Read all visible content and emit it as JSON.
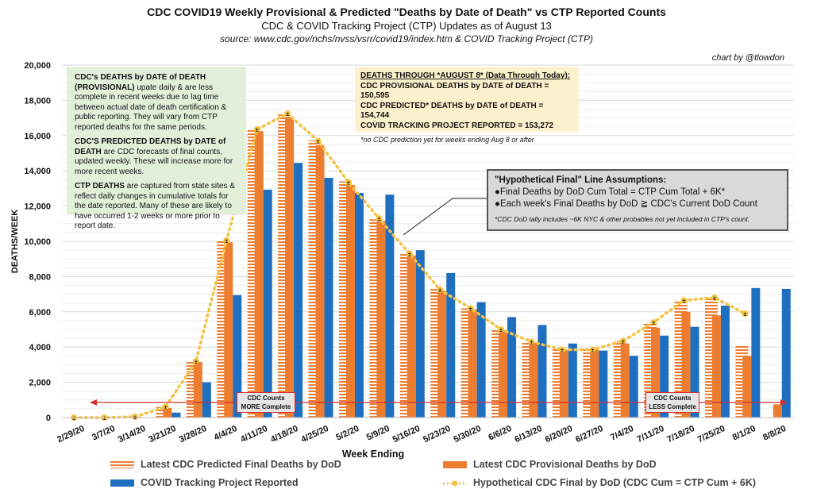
{
  "header": {
    "title": "CDC COVID19 Weekly Provisional & Predicted \"Deaths by Date of Death\" vs CTP Reported Counts",
    "subtitle": "CDC & COVID Tracking Project (CTP) Updates as of August 13",
    "source": "source: www.cdc.gov/nchs/nvss/vsrr/covid19/index.htm & COVID Tracking Project (CTP)",
    "credit": "chart by @tlowdon"
  },
  "colors": {
    "predicted": "#ed7d31",
    "provisional": "#ed7d31",
    "ctp": "#1f6fc0",
    "hypothetical": "#f5c242",
    "arrow": "#d32f2f"
  },
  "notes": {
    "green": [
      {
        "bold": "CDC's DEATHS by DATE of DEATH (PROVISIONAL)",
        "text": " upate daily & are less complete in recent weeks due to lag time between actual date of death certification & public reporting. They will vary from CTP reported deaths for the same periods."
      },
      {
        "bold": "CDC'S PREDICTED DEATHS by DATE of DEATH",
        "text": " are CDC forecasts of final counts, updated weekly. These will increase more for more recent weeks."
      },
      {
        "bold": "CTP DEATHS",
        "text": " are captured from state sites & reflect daily changes in cumulative totals for the date reported. Many of these are likely to have occurred 1-2 weeks or more prior to report date."
      }
    ],
    "yellow": {
      "heading": "DEATHS THROUGH *AUGUST 8* (Data Through Today):",
      "lines": [
        "CDC PROVISIONAL DEATHS by DATE of DEATH = 150,595",
        "CDC PREDICTED* DEATHS by DATE of DEATH = 154,744",
        "COVID TRACKING PROJECT REPORTED = 153,272"
      ],
      "note": "*no CDC prediction yet for weeks ending Aug 8 or after"
    },
    "gray": {
      "heading": "\"Hypothetical Final\" Line Assumptions:",
      "lines": [
        "●Final Deaths by DoD Cum Total = CTP Cum Total + 6K*",
        "●Each week's Final Deaths by DoD ≧ CDC's Current DoD Count"
      ],
      "note": "*CDC DoD tally includes ~6K NYC & other probables not yet included in CTP's count."
    },
    "more_complete": [
      "CDC Counts",
      "MORE Complete"
    ],
    "less_complete": [
      "CDC Counts",
      "LESS Complete"
    ]
  },
  "chart_data": {
    "type": "bar",
    "title": "CDC COVID19 Weekly Provisional & Predicted \"Deaths by Date of Death\" vs CTP Reported Counts",
    "xlabel": "Week Ending",
    "ylabel": "DEATHS/WEEK",
    "ylim": [
      0,
      20000
    ],
    "yticks": [
      "0",
      "2,000",
      "4,000",
      "6,000",
      "8,000",
      "10,000",
      "12,000",
      "14,000",
      "16,000",
      "18,000",
      "20,000"
    ],
    "grid": true,
    "legend_position": "bottom",
    "categories": [
      "2/29/20",
      "3/7/20",
      "3/14/20",
      "3/21/20",
      "3/28/20",
      "4/4/20",
      "4/11/20",
      "4/18/20",
      "4/25/20",
      "5/2/20",
      "5/9/20",
      "5/16/20",
      "5/23/20",
      "5/30/20",
      "6/6/20",
      "6/13/20",
      "6/20/20",
      "6/27/20",
      "7/4/20",
      "7/11/20",
      "7/18/20",
      "7/25/20",
      "8/1/20",
      "8/8/20"
    ],
    "series": [
      {
        "name": "Latest CDC Predicted Final Deaths by DoD",
        "kind": "bar-hatched",
        "values": [
          0,
          0,
          50,
          600,
          3200,
          10050,
          16350,
          17200,
          15720,
          13400,
          11250,
          9300,
          7300,
          6200,
          5000,
          4300,
          3900,
          3900,
          4350,
          5400,
          6600,
          6800,
          4100,
          null
        ]
      },
      {
        "name": "Latest CDC Provisional Deaths by DoD",
        "kind": "bar-solid",
        "values": [
          0,
          0,
          50,
          550,
          3150,
          9950,
          16250,
          17050,
          15450,
          13200,
          11150,
          9200,
          7200,
          6150,
          4950,
          4250,
          3850,
          3850,
          4200,
          5100,
          6000,
          5800,
          3500,
          750
        ]
      },
      {
        "name": "COVID Tracking Project Reported",
        "kind": "bar-blue",
        "values": [
          0,
          0,
          0,
          280,
          2000,
          6950,
          12930,
          14450,
          13600,
          12750,
          12650,
          9500,
          8200,
          6550,
          5700,
          5250,
          4200,
          3800,
          3500,
          4650,
          5150,
          6350,
          7350,
          7300
        ]
      },
      {
        "name": "Hypothetical CDC Final by DoD (CDC Cum = CTP Cum + 6K)",
        "kind": "line-dotted",
        "values": [
          0,
          0,
          50,
          600,
          3200,
          10050,
          16350,
          17250,
          15700,
          13350,
          11300,
          9300,
          7250,
          6200,
          5000,
          4300,
          3850,
          3850,
          4350,
          5400,
          6650,
          6800,
          5900,
          null
        ]
      }
    ]
  }
}
